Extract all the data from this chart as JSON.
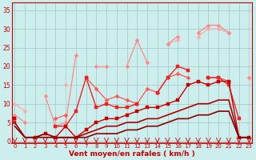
{
  "background_color": "#cceeed",
  "grid_color": "#aacccc",
  "x_label": "Vent moyen/en rafales ( km/h )",
  "x_ticks": [
    0,
    1,
    2,
    3,
    4,
    5,
    6,
    7,
    8,
    9,
    10,
    11,
    12,
    13,
    14,
    15,
    16,
    17,
    18,
    19,
    20,
    21,
    22,
    23
  ],
  "y_ticks": [
    0,
    5,
    10,
    15,
    20,
    25,
    30,
    35
  ],
  "ylim": [
    -0.5,
    37
  ],
  "xlim": [
    -0.3,
    23.3
  ],
  "series": [
    {
      "color": "#ffaaaa",
      "linewidth": 0.9,
      "marker": "D",
      "markersize": 2.5,
      "y": [
        10,
        8,
        null,
        null,
        null,
        15,
        null,
        null,
        null,
        null,
        null,
        null,
        null,
        null,
        null,
        26,
        27,
        null,
        28,
        30,
        30,
        29,
        null,
        17
      ]
    },
    {
      "color": "#ff8888",
      "linewidth": 0.9,
      "marker": "D",
      "markersize": 2.5,
      "y": [
        7,
        5,
        null,
        12,
        4,
        5,
        23,
        null,
        20,
        20,
        null,
        20,
        27,
        21,
        null,
        26,
        28,
        null,
        29,
        31,
        31,
        29,
        null,
        17
      ]
    },
    {
      "color": "#ff5555",
      "linewidth": 0.9,
      "marker": "D",
      "markersize": 2.5,
      "y": [
        6,
        null,
        null,
        null,
        6,
        7,
        null,
        17,
        14,
        11,
        12,
        11,
        10,
        14,
        13,
        17,
        18,
        17,
        null,
        17,
        17,
        16,
        null,
        null
      ]
    },
    {
      "color": "#ee2222",
      "linewidth": 1.0,
      "marker": "s",
      "markersize": 2.5,
      "y": [
        5,
        null,
        null,
        null,
        4,
        4,
        8,
        17,
        9,
        10,
        9,
        9,
        10,
        null,
        13,
        17,
        20,
        19,
        null,
        17,
        17,
        15,
        6,
        null
      ]
    },
    {
      "color": "#cc0000",
      "linewidth": 1.0,
      "marker": "s",
      "markersize": 2.5,
      "y": [
        6,
        null,
        1,
        2,
        1,
        4,
        1,
        3,
        5,
        6,
        6,
        7,
        8,
        9,
        9,
        10,
        11,
        15,
        16,
        15,
        16,
        16,
        1,
        1
      ]
    },
    {
      "color": "#aa0000",
      "linewidth": 1.2,
      "marker": null,
      "markersize": 0,
      "y": [
        5,
        1,
        1,
        2,
        1,
        1,
        1,
        2,
        3,
        4,
        4,
        5,
        5,
        6,
        6,
        7,
        8,
        9,
        10,
        10,
        11,
        11,
        1,
        1
      ]
    },
    {
      "color": "#880000",
      "linewidth": 1.2,
      "marker": null,
      "markersize": 0,
      "y": [
        4,
        1,
        1,
        1,
        1,
        1,
        1,
        1,
        2,
        2,
        2,
        3,
        3,
        4,
        4,
        5,
        6,
        6,
        7,
        7,
        8,
        8,
        1,
        1
      ]
    }
  ]
}
